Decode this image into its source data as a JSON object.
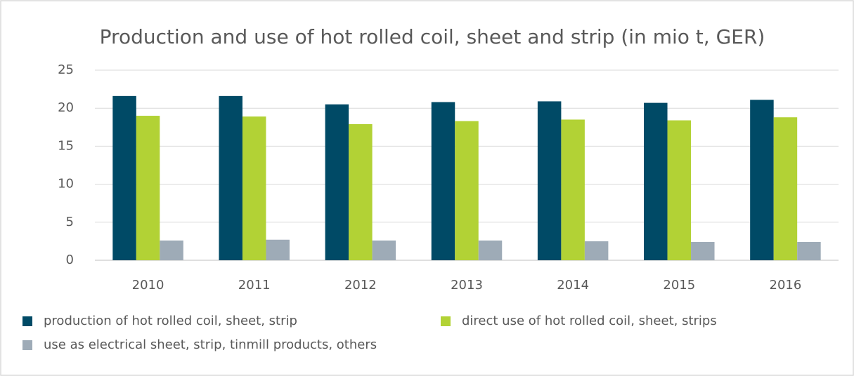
{
  "chart_data": {
    "type": "bar",
    "title": "Production and use of hot rolled coil, sheet and strip (in mio t, GER)",
    "categories": [
      "2010",
      "2011",
      "2012",
      "2013",
      "2014",
      "2015",
      "2016"
    ],
    "series": [
      {
        "name": "production of hot rolled coil, sheet, strip",
        "color": "#004a66",
        "values": [
          21.6,
          21.6,
          20.5,
          20.8,
          20.9,
          20.7,
          21.1
        ]
      },
      {
        "name": "direct use of hot rolled coil, sheet, strips",
        "color": "#b2d235",
        "values": [
          19.0,
          18.9,
          17.9,
          18.3,
          18.5,
          18.4,
          18.8
        ]
      },
      {
        "name": "use as electrical sheet, strip, tinmill products, others",
        "color": "#9eabb7",
        "values": [
          2.6,
          2.7,
          2.6,
          2.6,
          2.5,
          2.4,
          2.4
        ]
      }
    ],
    "ylim": [
      0,
      25
    ],
    "yticks": [
      0,
      5,
      10,
      15,
      20,
      25
    ],
    "grid": true,
    "legend": "bottom"
  }
}
